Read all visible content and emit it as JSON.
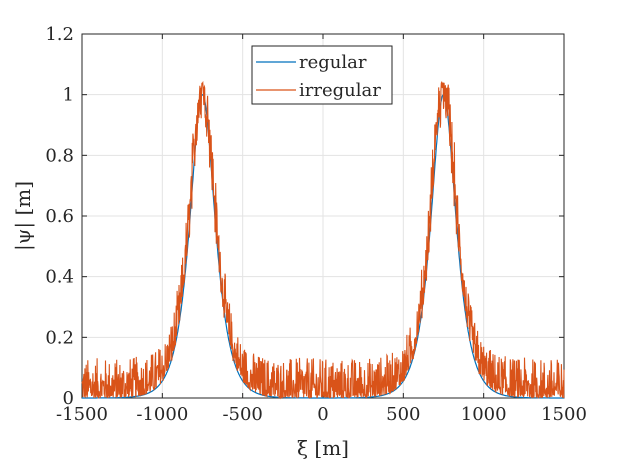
{
  "chart_data": {
    "type": "line",
    "title": "",
    "xlabel": "ξ [m]",
    "ylabel": "|ψ| [m]",
    "xlim": [
      -1500,
      1500
    ],
    "ylim": [
      0,
      1.2
    ],
    "xticks": [
      -1500,
      -1000,
      -500,
      0,
      500,
      1000,
      1500
    ],
    "xtick_labels": [
      "-1500",
      "-1000",
      "-500",
      "0",
      "500",
      "1000",
      "1500"
    ],
    "yticks": [
      0,
      0.2,
      0.4,
      0.6,
      0.8,
      1,
      1.2
    ],
    "ytick_labels": [
      "0",
      "0.2",
      "0.4",
      "0.6",
      "0.8",
      "1",
      "1.2"
    ],
    "grid": true,
    "legend_position": "top-center",
    "series": [
      {
        "name": "regular",
        "color": "#0072BD",
        "kind": "two-soliton profile",
        "peak_centers": [
          -750,
          750
        ],
        "peak_amplitude": 1.0,
        "peak_width": 70
      },
      {
        "name": "irregular",
        "color": "#D95319",
        "kind": "noisy two-soliton profile",
        "peak_centers": [
          -750,
          750
        ],
        "peak_amplitude": 1.04,
        "noise_level": 0.06
      }
    ]
  }
}
